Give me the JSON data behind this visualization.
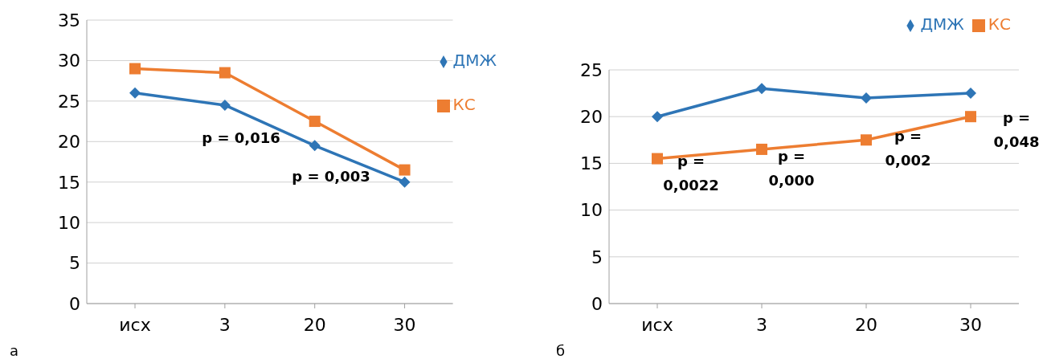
{
  "chart_data": [
    {
      "type": "line",
      "categories": [
        "исх",
        "3",
        "20",
        "30"
      ],
      "series": [
        {
          "name": "ДМЖ",
          "color": "#2e75b6",
          "marker": "diamond",
          "values": [
            26,
            24.5,
            19.5,
            15
          ]
        },
        {
          "name": "КС",
          "color": "#ed7d31",
          "marker": "square",
          "values": [
            29,
            28.5,
            22.5,
            16.5
          ]
        }
      ],
      "ylim": [
        0,
        35
      ],
      "yticks": [
        0,
        5,
        10,
        15,
        20,
        25,
        30,
        35
      ],
      "grid": "y",
      "legend": "top right",
      "annotations": [
        "p = 0,016",
        "p = 0,003",
        "а"
      ]
    },
    {
      "type": "line",
      "categories": [
        "исх",
        "3",
        "20",
        "30"
      ],
      "series": [
        {
          "name": "ДМЖ",
          "color": "#2e75b6",
          "marker": "diamond",
          "values": [
            20,
            23,
            22,
            22.5
          ]
        },
        {
          "name": "КС",
          "color": "#ed7d31",
          "marker": "square",
          "values": [
            15.5,
            16.5,
            17.5,
            20
          ]
        }
      ],
      "ylim": [
        0,
        25
      ],
      "yticks": [
        0,
        5,
        10,
        15,
        20,
        25
      ],
      "grid": "y",
      "legend": "top",
      "annotations": [
        "p = 0,0022",
        "p = 0,000",
        "p = 0,002",
        "p = 0,048",
        "б"
      ]
    }
  ]
}
